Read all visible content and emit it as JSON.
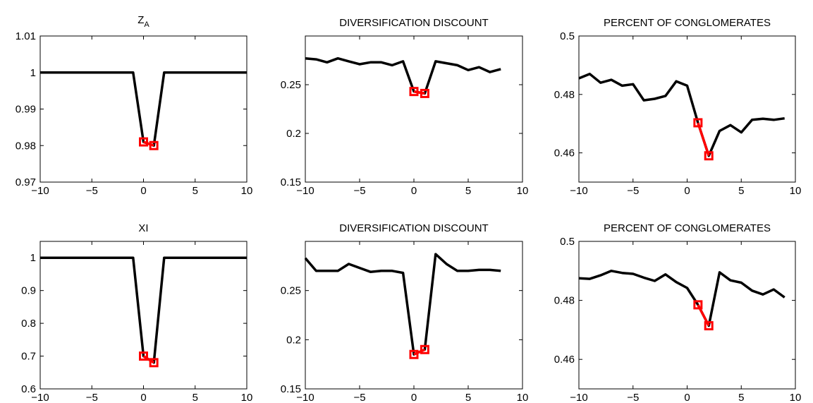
{
  "chart_data": [
    {
      "type": "line",
      "title": {
        "main": "Z",
        "sub": "A"
      },
      "x": [
        -10,
        -9,
        -8,
        -7,
        -6,
        -5,
        -4,
        -3,
        -2,
        -1,
        0,
        1,
        2,
        3,
        4,
        5,
        6,
        7,
        8,
        9,
        10
      ],
      "series": [
        {
          "color": "#000000",
          "values": [
            1,
            1,
            1,
            1,
            1,
            1,
            1,
            1,
            1,
            1,
            0.981,
            0.98,
            1,
            1,
            1,
            1,
            1,
            1,
            1,
            1,
            1
          ]
        },
        {
          "color": "#ff0000",
          "marker": "square",
          "values": [
            null,
            null,
            null,
            null,
            null,
            null,
            null,
            null,
            null,
            null,
            0.981,
            0.98,
            null,
            null,
            null,
            null,
            null,
            null,
            null,
            null,
            null
          ]
        }
      ],
      "xlim": [
        -10,
        10
      ],
      "xticks": [
        {
          "value": -10,
          "label": "−10"
        },
        {
          "value": -5,
          "label": "−5"
        },
        0,
        5,
        10
      ],
      "ylim": [
        0.97,
        1.01
      ],
      "yticks": [
        0.97,
        0.98,
        0.99,
        1,
        1.01
      ]
    },
    {
      "type": "line",
      "title": "DIVERSIFICATION DISCOUNT",
      "x": [
        -10,
        -9,
        -8,
        -7,
        -6,
        -5,
        -4,
        -3,
        -2,
        -1,
        0,
        1,
        2,
        3,
        4,
        5,
        6,
        7,
        8
      ],
      "series": [
        {
          "color": "#000000",
          "values": [
            0.277,
            0.276,
            0.273,
            0.277,
            0.274,
            0.271,
            0.273,
            0.273,
            0.27,
            0.274,
            0.243,
            0.241,
            0.274,
            0.272,
            0.27,
            0.265,
            0.268,
            0.263,
            0.266
          ]
        },
        {
          "color": "#ff0000",
          "marker": "square",
          "values": [
            null,
            null,
            null,
            null,
            null,
            null,
            null,
            null,
            null,
            null,
            0.243,
            0.241,
            null,
            null,
            null,
            null,
            null,
            null,
            null
          ]
        }
      ],
      "xlim": [
        -10,
        10
      ],
      "xticks": [
        {
          "value": -10,
          "label": "−10"
        },
        {
          "value": -5,
          "label": "−5"
        },
        0,
        5,
        10
      ],
      "ylim": [
        0.15,
        0.3
      ],
      "yticks": [
        0.15,
        0.2,
        0.25
      ]
    },
    {
      "type": "line",
      "title": "PERCENT OF CONGLOMERATES",
      "x": [
        -10,
        -9,
        -8,
        -7,
        -6,
        -5,
        -4,
        -3,
        -2,
        -1,
        0,
        1,
        2,
        3,
        4,
        5,
        6,
        7,
        8,
        9
      ],
      "series": [
        {
          "color": "#000000",
          "values": [
            0.4855,
            0.487,
            0.484,
            0.485,
            0.483,
            0.4835,
            0.478,
            0.4785,
            0.4795,
            0.4845,
            0.483,
            0.4703,
            0.459,
            0.4675,
            0.4695,
            0.467,
            0.4713,
            0.4717,
            0.4713,
            0.4718
          ]
        },
        {
          "color": "#ff0000",
          "marker": "square",
          "values": [
            null,
            null,
            null,
            null,
            null,
            null,
            null,
            null,
            null,
            null,
            null,
            0.4703,
            0.459,
            null,
            null,
            null,
            null,
            null,
            null,
            null
          ]
        }
      ],
      "xlim": [
        -10,
        10
      ],
      "xticks": [
        {
          "value": -10,
          "label": "−10"
        },
        {
          "value": -5,
          "label": "−5"
        },
        0,
        5,
        10
      ],
      "ylim": [
        0.45,
        0.5
      ],
      "yticks": [
        0.46,
        0.48,
        0.5
      ]
    },
    {
      "type": "line",
      "title": "XI",
      "x": [
        -10,
        -9,
        -8,
        -7,
        -6,
        -5,
        -4,
        -3,
        -2,
        -1,
        0,
        1,
        2,
        3,
        4,
        5,
        6,
        7,
        8,
        9,
        10
      ],
      "series": [
        {
          "color": "#000000",
          "values": [
            1,
            1,
            1,
            1,
            1,
            1,
            1,
            1,
            1,
            1,
            0.7,
            0.68,
            1,
            1,
            1,
            1,
            1,
            1,
            1,
            1,
            1
          ]
        },
        {
          "color": "#ff0000",
          "marker": "square",
          "values": [
            null,
            null,
            null,
            null,
            null,
            null,
            null,
            null,
            null,
            null,
            0.7,
            0.68,
            null,
            null,
            null,
            null,
            null,
            null,
            null,
            null,
            null
          ]
        }
      ],
      "xlim": [
        -10,
        10
      ],
      "xticks": [
        {
          "value": -10,
          "label": "−10"
        },
        {
          "value": -5,
          "label": "−5"
        },
        0,
        5,
        10
      ],
      "ylim": [
        0.6,
        1.05
      ],
      "yticks": [
        0.6,
        0.7,
        0.8,
        0.9,
        1
      ]
    },
    {
      "type": "line",
      "title": "DIVERSIFICATION DISCOUNT",
      "x": [
        -10,
        -9,
        -8,
        -7,
        -6,
        -5,
        -4,
        -3,
        -2,
        -1,
        0,
        1,
        2,
        3,
        4,
        5,
        6,
        7,
        8
      ],
      "series": [
        {
          "color": "#000000",
          "values": [
            0.283,
            0.27,
            0.27,
            0.27,
            0.277,
            0.273,
            0.269,
            0.27,
            0.27,
            0.268,
            0.185,
            0.19,
            0.287,
            0.277,
            0.27,
            0.27,
            0.271,
            0.271,
            0.27
          ]
        },
        {
          "color": "#ff0000",
          "marker": "square",
          "values": [
            null,
            null,
            null,
            null,
            null,
            null,
            null,
            null,
            null,
            null,
            0.185,
            0.19,
            null,
            null,
            null,
            null,
            null,
            null,
            null
          ]
        }
      ],
      "xlim": [
        -10,
        10
      ],
      "xticks": [
        {
          "value": -10,
          "label": "−10"
        },
        {
          "value": -5,
          "label": "−5"
        },
        0,
        5,
        10
      ],
      "ylim": [
        0.15,
        0.3
      ],
      "yticks": [
        0.15,
        0.2,
        0.25
      ]
    },
    {
      "type": "line",
      "title": "PERCENT OF CONGLOMERATES",
      "x": [
        -10,
        -9,
        -8,
        -7,
        -6,
        -5,
        -4,
        -3,
        -2,
        -1,
        0,
        1,
        2,
        3,
        4,
        5,
        6,
        7,
        8,
        9
      ],
      "series": [
        {
          "color": "#000000",
          "values": [
            0.4875,
            0.4873,
            0.4885,
            0.49,
            0.4893,
            0.489,
            0.4877,
            0.4866,
            0.4888,
            0.4862,
            0.4842,
            0.4785,
            0.4714,
            0.4895,
            0.4868,
            0.486,
            0.4833,
            0.482,
            0.4837,
            0.481
          ]
        },
        {
          "color": "#ff0000",
          "marker": "square",
          "values": [
            null,
            null,
            null,
            null,
            null,
            null,
            null,
            null,
            null,
            null,
            null,
            0.4785,
            0.4714,
            null,
            null,
            null,
            null,
            null,
            null,
            null
          ]
        }
      ],
      "xlim": [
        -10,
        10
      ],
      "xticks": [
        {
          "value": -10,
          "label": "−10"
        },
        {
          "value": -5,
          "label": "−5"
        },
        0,
        5,
        10
      ],
      "ylim": [
        0.45,
        0.5
      ],
      "yticks": [
        0.46,
        0.48,
        0.5
      ]
    }
  ]
}
